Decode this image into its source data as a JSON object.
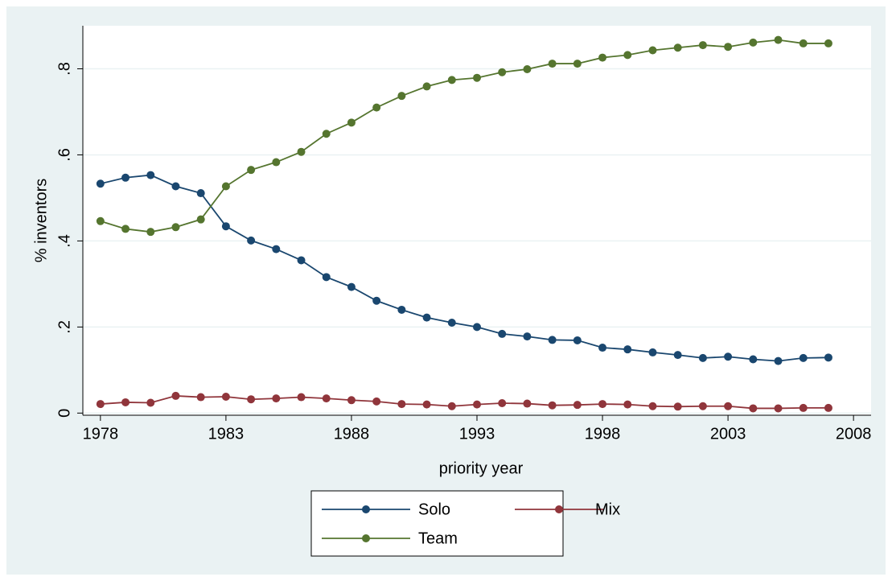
{
  "chart_data": {
    "type": "line",
    "x": [
      1978,
      1979,
      1980,
      1981,
      1982,
      1983,
      1984,
      1985,
      1986,
      1987,
      1988,
      1989,
      1990,
      1991,
      1992,
      1993,
      1994,
      1995,
      1996,
      1997,
      1998,
      1999,
      2000,
      2001,
      2002,
      2003,
      2004,
      2005,
      2006,
      2007
    ],
    "series": [
      {
        "name": "Solo",
        "color": "#1a476f",
        "values": [
          0.533,
          0.547,
          0.553,
          0.527,
          0.511,
          0.434,
          0.401,
          0.381,
          0.355,
          0.316,
          0.293,
          0.261,
          0.24,
          0.222,
          0.21,
          0.2,
          0.184,
          0.178,
          0.17,
          0.169,
          0.152,
          0.148,
          0.141,
          0.135,
          0.128,
          0.131,
          0.125,
          0.121,
          0.128,
          0.129
        ]
      },
      {
        "name": "Mix",
        "color": "#90353b",
        "values": [
          0.021,
          0.025,
          0.024,
          0.04,
          0.037,
          0.038,
          0.032,
          0.034,
          0.037,
          0.034,
          0.03,
          0.027,
          0.021,
          0.02,
          0.016,
          0.02,
          0.023,
          0.022,
          0.018,
          0.019,
          0.021,
          0.02,
          0.016,
          0.015,
          0.016,
          0.016,
          0.011,
          0.011,
          0.012,
          0.012
        ]
      },
      {
        "name": "Team",
        "color": "#55752f",
        "values": [
          0.446,
          0.428,
          0.421,
          0.432,
          0.45,
          0.527,
          0.565,
          0.583,
          0.607,
          0.649,
          0.675,
          0.71,
          0.737,
          0.759,
          0.774,
          0.779,
          0.792,
          0.799,
          0.812,
          0.812,
          0.826,
          0.832,
          0.843,
          0.849,
          0.855,
          0.851,
          0.861,
          0.867,
          0.859,
          0.859
        ]
      }
    ],
    "x_label": "priority year",
    "y_label": "% inventors",
    "xlim": [
      1977.3,
      2008.7
    ],
    "xticks": [
      1978,
      1983,
      1988,
      1993,
      1998,
      2003,
      2008
    ],
    "ylim": [
      -0.005,
      0.9
    ],
    "yticks": [
      0,
      {
        "value": 0.2,
        "label": ".2"
      },
      {
        "value": 0.4,
        "label": ".4"
      },
      {
        "value": 0.6,
        "label": ".6"
      },
      {
        "value": 0.8,
        "label": ".8"
      }
    ],
    "grid": true,
    "legend_position": "bottom"
  }
}
